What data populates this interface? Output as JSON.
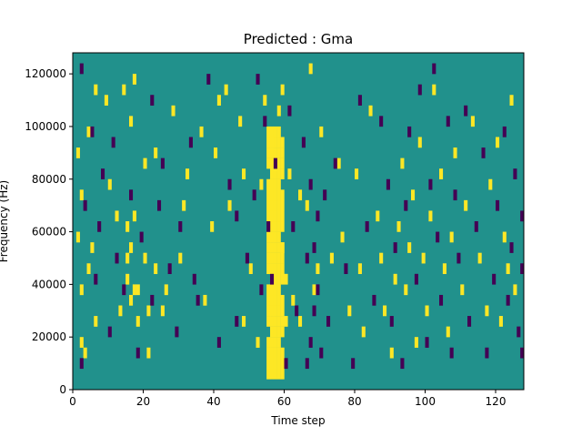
{
  "chart_data": {
    "type": "heatmap",
    "title": "Predicted : Gma",
    "xlabel": "Time step",
    "ylabel": "Frequency (Hz)",
    "xlim": [
      0,
      128
    ],
    "ylim": [
      0,
      128000
    ],
    "x_ticks": [
      0,
      20,
      40,
      60,
      80,
      100,
      120
    ],
    "y_ticks": [
      0,
      20000,
      40000,
      60000,
      80000,
      100000,
      120000
    ],
    "x_tick_labels": [
      "0",
      "20",
      "40",
      "60",
      "80",
      "100",
      "120"
    ],
    "y_tick_labels": [
      "0",
      "20000",
      "40000",
      "60000",
      "80000",
      "100000",
      "120000"
    ],
    "grid": false,
    "legend": "none",
    "colormap": "viridis",
    "colors": {
      "background": "#21918c",
      "high": "#fde725",
      "low": "#440154"
    },
    "n_time_steps": 128,
    "n_freq_bins": 32,
    "bin_height_hz": 4000,
    "dense_band": {
      "time_range": [
        55,
        59
      ],
      "value": "high",
      "note_bins": [
        [
          1,
          24
        ]
      ]
    },
    "high_cells": [
      [
        1,
        14
      ],
      [
        1,
        22
      ],
      [
        2,
        4
      ],
      [
        2,
        9
      ],
      [
        2,
        18
      ],
      [
        3,
        3
      ],
      [
        4,
        24
      ],
      [
        4,
        11
      ],
      [
        5,
        13
      ],
      [
        6,
        28
      ],
      [
        6,
        6
      ],
      [
        9,
        27
      ],
      [
        10,
        19
      ],
      [
        12,
        16
      ],
      [
        13,
        7
      ],
      [
        14,
        28
      ],
      [
        15,
        15
      ],
      [
        15,
        12
      ],
      [
        15,
        10
      ],
      [
        16,
        8
      ],
      [
        16,
        13
      ],
      [
        16,
        25
      ],
      [
        17,
        9
      ],
      [
        17,
        16
      ],
      [
        17,
        29
      ],
      [
        18,
        6
      ],
      [
        18,
        9
      ],
      [
        20,
        12
      ],
      [
        20,
        21
      ],
      [
        21,
        3
      ],
      [
        21,
        7
      ],
      [
        23,
        22
      ],
      [
        23,
        11
      ],
      [
        25,
        7
      ],
      [
        26,
        9
      ],
      [
        28,
        26
      ],
      [
        30,
        12
      ],
      [
        31,
        17
      ],
      [
        32,
        20
      ],
      [
        36,
        24
      ],
      [
        37,
        8
      ],
      [
        39,
        15
      ],
      [
        40,
        22
      ],
      [
        41,
        27
      ],
      [
        43,
        28
      ],
      [
        44,
        17
      ],
      [
        47,
        25
      ],
      [
        48,
        20
      ],
      [
        48,
        6
      ],
      [
        50,
        11
      ],
      [
        52,
        4
      ],
      [
        53,
        19
      ],
      [
        54,
        27
      ],
      [
        56,
        23
      ],
      [
        58,
        26
      ],
      [
        59,
        28
      ],
      [
        59,
        13
      ],
      [
        60,
        6
      ],
      [
        60,
        10
      ],
      [
        61,
        20
      ],
      [
        62,
        8
      ],
      [
        64,
        18
      ],
      [
        64,
        6
      ],
      [
        66,
        17
      ],
      [
        67,
        30
      ],
      [
        68,
        9
      ],
      [
        69,
        11
      ],
      [
        70,
        24
      ],
      [
        73,
        12
      ],
      [
        75,
        21
      ],
      [
        76,
        14
      ],
      [
        78,
        7
      ],
      [
        80,
        20
      ],
      [
        81,
        11
      ],
      [
        82,
        5
      ],
      [
        84,
        26
      ],
      [
        86,
        16
      ],
      [
        87,
        12
      ],
      [
        88,
        7
      ],
      [
        90,
        3
      ],
      [
        91,
        10
      ],
      [
        92,
        15
      ],
      [
        93,
        21
      ],
      [
        94,
        9
      ],
      [
        95,
        13
      ],
      [
        96,
        18
      ],
      [
        97,
        4
      ],
      [
        98,
        23
      ],
      [
        99,
        12
      ],
      [
        100,
        7
      ],
      [
        101,
        16
      ],
      [
        102,
        28
      ],
      [
        104,
        20
      ],
      [
        105,
        11
      ],
      [
        106,
        5
      ],
      [
        107,
        14
      ],
      [
        108,
        22
      ],
      [
        110,
        9
      ],
      [
        111,
        17
      ],
      [
        113,
        25
      ],
      [
        115,
        12
      ],
      [
        117,
        7
      ],
      [
        118,
        19
      ],
      [
        120,
        23
      ],
      [
        121,
        6
      ],
      [
        122,
        14
      ],
      [
        123,
        11
      ],
      [
        124,
        27
      ],
      [
        125,
        9
      ]
    ],
    "low_cells": [
      [
        2,
        30
      ],
      [
        2,
        2
      ],
      [
        3,
        17
      ],
      [
        5,
        24
      ],
      [
        6,
        10
      ],
      [
        7,
        15
      ],
      [
        8,
        20
      ],
      [
        10,
        5
      ],
      [
        11,
        23
      ],
      [
        12,
        12
      ],
      [
        14,
        9
      ],
      [
        16,
        18
      ],
      [
        18,
        3
      ],
      [
        19,
        14
      ],
      [
        22,
        8
      ],
      [
        22,
        27
      ],
      [
        24,
        17
      ],
      [
        25,
        21
      ],
      [
        27,
        11
      ],
      [
        29,
        5
      ],
      [
        30,
        15
      ],
      [
        33,
        23
      ],
      [
        34,
        10
      ],
      [
        35,
        8
      ],
      [
        38,
        29
      ],
      [
        41,
        4
      ],
      [
        44,
        19
      ],
      [
        46,
        6
      ],
      [
        46,
        16
      ],
      [
        49,
        12
      ],
      [
        51,
        18
      ],
      [
        52,
        29
      ],
      [
        53,
        9
      ],
      [
        54,
        25
      ],
      [
        55,
        15
      ],
      [
        56,
        10
      ],
      [
        57,
        21
      ],
      [
        60,
        2
      ],
      [
        61,
        26
      ],
      [
        62,
        15
      ],
      [
        63,
        7
      ],
      [
        65,
        23
      ],
      [
        66,
        2
      ],
      [
        66,
        12
      ],
      [
        67,
        4
      ],
      [
        67,
        19
      ],
      [
        68,
        7
      ],
      [
        68,
        13
      ],
      [
        69,
        9
      ],
      [
        69,
        16
      ],
      [
        70,
        3
      ],
      [
        71,
        18
      ],
      [
        72,
        6
      ],
      [
        74,
        21
      ],
      [
        77,
        11
      ],
      [
        79,
        2
      ],
      [
        81,
        27
      ],
      [
        83,
        15
      ],
      [
        85,
        8
      ],
      [
        87,
        25
      ],
      [
        89,
        19
      ],
      [
        90,
        6
      ],
      [
        91,
        13
      ],
      [
        93,
        2
      ],
      [
        94,
        17
      ],
      [
        95,
        24
      ],
      [
        97,
        10
      ],
      [
        98,
        28
      ],
      [
        100,
        4
      ],
      [
        101,
        19
      ],
      [
        102,
        30
      ],
      [
        103,
        14
      ],
      [
        104,
        8
      ],
      [
        106,
        25
      ],
      [
        107,
        3
      ],
      [
        108,
        18
      ],
      [
        109,
        12
      ],
      [
        111,
        26
      ],
      [
        112,
        6
      ],
      [
        114,
        15
      ],
      [
        116,
        22
      ],
      [
        117,
        3
      ],
      [
        119,
        10
      ],
      [
        120,
        17
      ],
      [
        122,
        24
      ],
      [
        123,
        8
      ],
      [
        124,
        13
      ],
      [
        125,
        20
      ],
      [
        126,
        5
      ],
      [
        127,
        3
      ],
      [
        127,
        11
      ],
      [
        127,
        16
      ]
    ]
  }
}
